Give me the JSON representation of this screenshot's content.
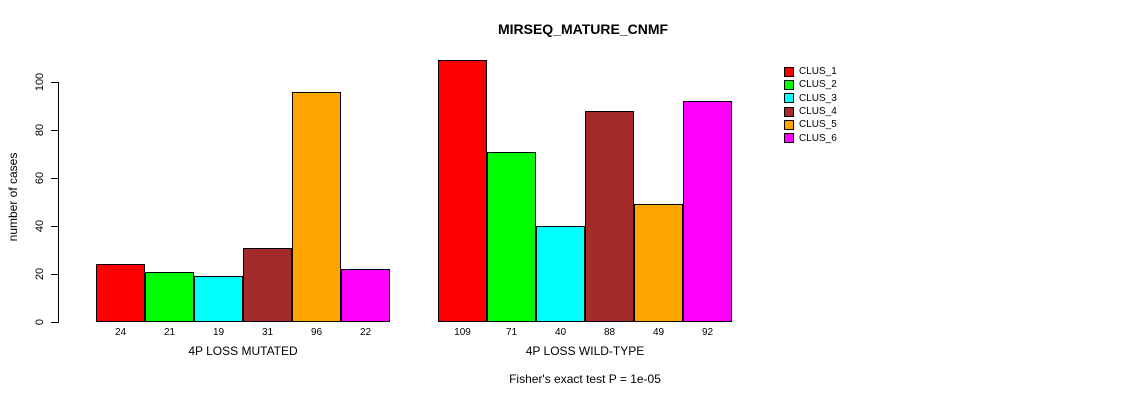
{
  "chart_data": {
    "type": "bar",
    "title": "MIRSEQ_MATURE_CNMF",
    "ylabel": "number of cases",
    "xlabel": "",
    "ylim": [
      0,
      100
    ],
    "yticks": [
      0,
      20,
      40,
      60,
      80,
      100
    ],
    "grid": false,
    "legend_position": "right",
    "categories": [
      "4P LOSS MUTATED",
      "4P LOSS WILD-TYPE"
    ],
    "series": [
      {
        "name": "CLUS_1",
        "color": "#FF0000",
        "values": [
          24,
          109
        ]
      },
      {
        "name": "CLUS_2",
        "color": "#00FF00",
        "values": [
          21,
          71
        ]
      },
      {
        "name": "CLUS_3",
        "color": "#00FFFF",
        "values": [
          19,
          40
        ]
      },
      {
        "name": "CLUS_4",
        "color": "#A52A2A",
        "values": [
          31,
          88
        ]
      },
      {
        "name": "CLUS_5",
        "color": "#FFA500",
        "values": [
          96,
          49
        ]
      },
      {
        "name": "CLUS_6",
        "color": "#FF00FF",
        "values": [
          22,
          92
        ]
      }
    ],
    "bar_outline_color": "#000000",
    "annotation": "Fisher's exact test P = 1e-05"
  }
}
